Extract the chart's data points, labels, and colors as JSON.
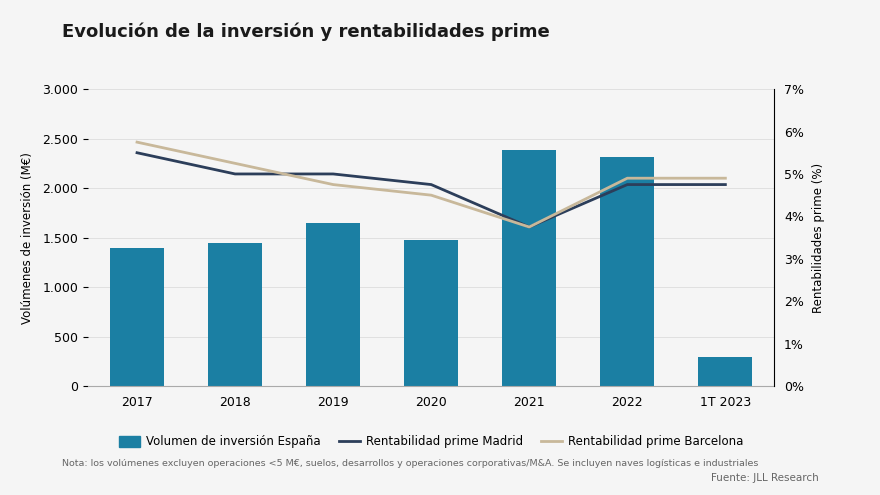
{
  "title": "Evolución de la inversión y rentabilidades prime",
  "categories": [
    "2017",
    "2018",
    "2019",
    "2020",
    "2021",
    "2022",
    "1T 2023"
  ],
  "bar_values": [
    1400,
    1450,
    1650,
    1480,
    2380,
    2310,
    290
  ],
  "bar_color": "#1b7fa3",
  "madrid_yields": [
    5.5,
    5.0,
    5.0,
    4.75,
    3.75,
    4.75,
    4.75
  ],
  "barcelona_yields": [
    5.75,
    5.25,
    4.75,
    4.5,
    3.75,
    4.9,
    4.9
  ],
  "madrid_color": "#2c3e5a",
  "barcelona_color": "#c8b89a",
  "ylabel_left": "Volúmenes de inversión (M€)",
  "ylabel_right": "Rentabilidades prime (%)",
  "ylim_left": [
    0,
    3000
  ],
  "ylim_right": [
    0,
    7
  ],
  "yticks_left": [
    0,
    500,
    1000,
    1500,
    2000,
    2500,
    3000
  ],
  "ytick_labels_left": [
    "0",
    "500",
    "1.000",
    "1.500",
    "2.000",
    "2.500",
    "3.000"
  ],
  "yticks_right": [
    0,
    1,
    2,
    3,
    4,
    5,
    6,
    7
  ],
  "ytick_labels_right": [
    "0%",
    "1%",
    "2%",
    "3%",
    "4%",
    "5%",
    "6%",
    "7%"
  ],
  "legend_bar": "Volumen de inversión España",
  "legend_madrid": "Rentabilidad prime Madrid",
  "legend_barcelona": "Rentabilidad prime Barcelona",
  "note": "Nota: los volúmenes excluyen operaciones <5 M€, suelos, desarrollos y operaciones corporativas/M&A. Se incluyen naves logísticas e industriales",
  "source": "Fuente: JLL Research",
  "bg_color": "#f5f5f5",
  "title_fontsize": 13,
  "axis_fontsize": 8.5,
  "tick_fontsize": 9
}
